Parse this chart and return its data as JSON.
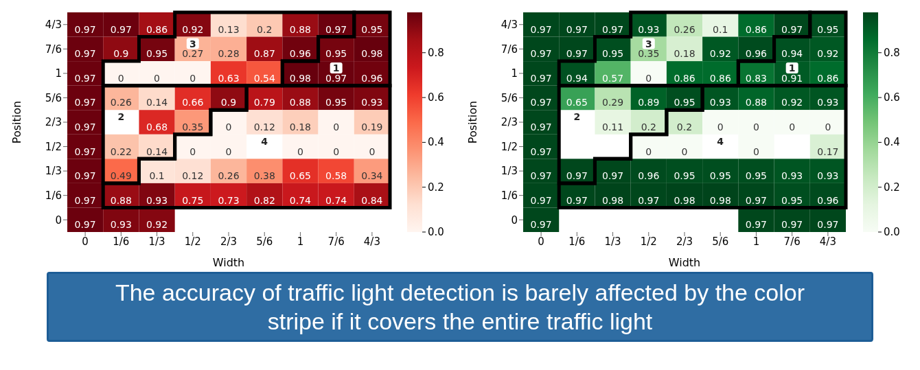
{
  "chart_data": [
    {
      "type": "heatmap",
      "xlabel": "Width",
      "ylabel": "Position",
      "data_labels": true,
      "categories": [
        "0",
        "1/6",
        "1/3",
        "1/2",
        "2/3",
        "5/6",
        "1",
        "7/6",
        "4/3"
      ],
      "y_categories": [
        "4/3",
        "7/6",
        "1",
        "5/6",
        "2/3",
        "1/2",
        "1/3",
        "1/6",
        "0"
      ],
      "cells": [
        [
          0.97,
          0.97,
          0.86,
          0.92,
          0.13,
          0.2,
          0.88,
          0.97,
          0.95
        ],
        [
          0.97,
          0.9,
          0.95,
          0.27,
          0.28,
          0.87,
          0.96,
          0.95,
          0.98
        ],
        [
          0.97,
          0,
          0,
          0,
          0.63,
          0.54,
          0.98,
          0.97,
          0.96
        ],
        [
          0.97,
          0.26,
          0.14,
          0.66,
          0.9,
          0.79,
          0.88,
          0.95,
          0.93
        ],
        [
          0.97,
          null,
          0.68,
          0.35,
          0,
          0.12,
          0.18,
          0,
          0.19
        ],
        [
          0.97,
          0.22,
          0.14,
          0,
          0,
          null,
          0,
          0,
          0
        ],
        [
          0.97,
          0.49,
          0.1,
          0.12,
          0.26,
          0.38,
          0.65,
          0.58,
          0.34
        ],
        [
          0.97,
          0.88,
          0.93,
          0.75,
          0.73,
          0.82,
          0.74,
          0.74,
          0.84
        ],
        [
          0.97,
          0.93,
          0.92,
          null,
          null,
          null,
          null,
          null,
          null
        ]
      ],
      "colors": [
        "#fff5f0",
        "#fee0d2",
        "#fcbba1",
        "#fc9272",
        "#fb6a4a",
        "#ef3b2c",
        "#cb181d",
        "#a50f15",
        "#67000d"
      ],
      "clim": [
        0,
        0.98
      ],
      "cticks": [
        {
          "value": 0,
          "label": "0.0"
        },
        {
          "value": 0.2,
          "label": "0.2"
        },
        {
          "value": 0.4,
          "label": "0.4"
        },
        {
          "value": 0.6,
          "label": "0.6"
        },
        {
          "value": 0.8,
          "label": "0.8"
        }
      ],
      "annotations": [
        "3",
        "1",
        "2",
        "4",
        "The accuracy of traffic light detection is barely affected by the color stripe if it covers the entire traffic light"
      ]
    },
    {
      "type": "heatmap",
      "xlabel": "Width",
      "ylabel": "Position",
      "data_labels": true,
      "categories": [
        "0",
        "1/6",
        "1/3",
        "1/2",
        "2/3",
        "5/6",
        "1",
        "7/6",
        "4/3"
      ],
      "y_categories": [
        "4/3",
        "7/6",
        "1",
        "5/6",
        "2/3",
        "1/2",
        "1/3",
        "1/6",
        "0"
      ],
      "cells": [
        [
          0.97,
          0.97,
          0.97,
          0.93,
          0.26,
          0.1,
          0.86,
          0.97,
          0.95
        ],
        [
          0.97,
          0.97,
          0.95,
          0.35,
          0.18,
          0.92,
          0.96,
          0.94,
          0.92
        ],
        [
          0.97,
          0.94,
          0.57,
          0,
          0.86,
          0.86,
          0.83,
          0.91,
          0.86
        ],
        [
          0.97,
          0.65,
          0.29,
          0.89,
          0.95,
          0.93,
          0.88,
          0.92,
          0.93
        ],
        [
          0.97,
          null,
          0.11,
          0.2,
          0.2,
          0,
          0,
          0,
          0
        ],
        [
          0.97,
          null,
          null,
          0,
          0,
          null,
          0,
          null,
          0.17
        ],
        [
          0.97,
          0.97,
          0.97,
          0.96,
          0.95,
          0.95,
          0.95,
          0.93,
          0.93
        ],
        [
          0.97,
          0.97,
          0.98,
          0.97,
          0.98,
          0.98,
          0.97,
          0.95,
          0.96
        ],
        [
          0.97,
          null,
          null,
          null,
          null,
          null,
          0.97,
          0.97,
          0.97
        ]
      ],
      "colors": [
        "#f7fcf5",
        "#e5f5e0",
        "#c7e9c0",
        "#a1d99b",
        "#74c476",
        "#41ab5d",
        "#238b45",
        "#006d2c",
        "#00441b"
      ],
      "clim": [
        0,
        0.98
      ],
      "cticks": [
        {
          "value": 0,
          "label": "0.0"
        },
        {
          "value": 0.2,
          "label": "0.2"
        },
        {
          "value": 0.4,
          "label": "0.4"
        },
        {
          "value": 0.6,
          "label": "0.6"
        },
        {
          "value": 0.8,
          "label": "0.8"
        }
      ],
      "annotations": [
        "3",
        "1",
        "2",
        "4"
      ]
    }
  ]
}
